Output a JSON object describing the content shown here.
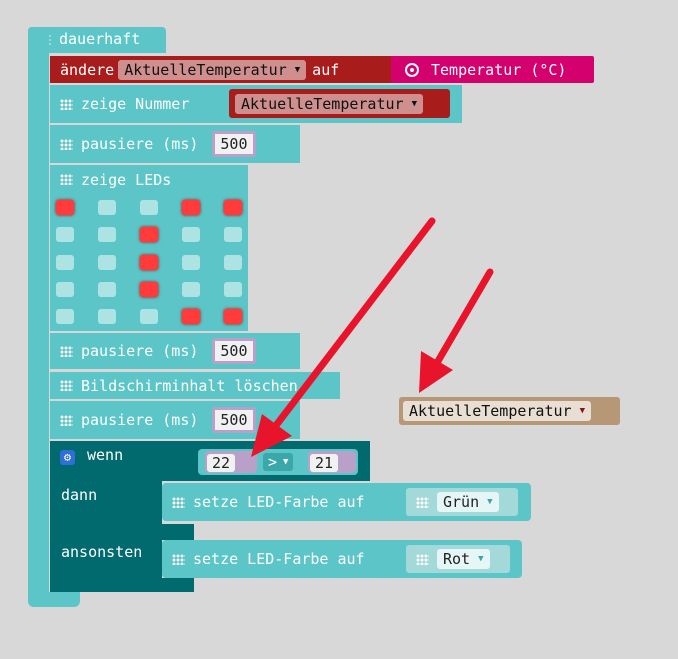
{
  "blocks": {
    "forever": "dauerhaft",
    "set_var_prefix": "ändere",
    "variable_name": "AktuelleTemperatur",
    "set_var_to": "auf",
    "temperature_sensor": "Temperatur (°C)",
    "show_number": "zeige Nummer",
    "pause_label": "pausiere (ms)",
    "pause_value": "500",
    "show_leds": "zeige LEDs",
    "clear_screen": "Bildschirminhalt löschen",
    "if_label": "wenn",
    "then_label": "dann",
    "else_label": "ansonsten",
    "compare_left": "22",
    "compare_op": ">",
    "compare_right": "21",
    "set_led_color": "setze LED-Farbe auf",
    "color_green": "Grün",
    "color_red": "Rot",
    "pause3_value": "500"
  },
  "led_grid": [
    [
      1,
      0,
      0,
      1,
      1
    ],
    [
      0,
      0,
      1,
      0,
      0
    ],
    [
      0,
      0,
      1,
      0,
      0
    ],
    [
      0,
      0,
      1,
      0,
      0
    ],
    [
      0,
      0,
      0,
      1,
      1
    ]
  ],
  "colors": {
    "block_teal": "#5cc5c7",
    "block_dark_teal": "#006a6f",
    "variable_red": "#a81c1c",
    "sensor_magenta": "#d4006e",
    "arrow_red": "#e8142c",
    "loose_variable_brown": "#b69776"
  },
  "icons": {
    "block_icon": "grid-dots-icon",
    "if_icon": "gear-icon",
    "dropdown": "chevron-down-icon"
  }
}
